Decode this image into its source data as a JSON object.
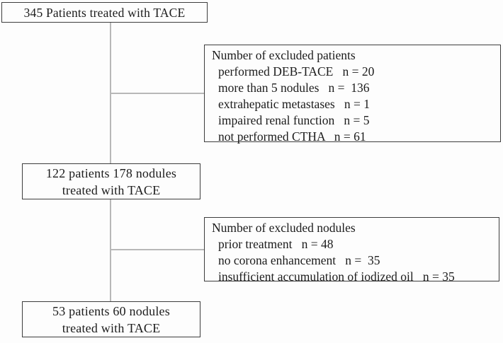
{
  "figure": {
    "type": "patient-flow-diagram",
    "colors": {
      "background": "#fdfdfd",
      "box_border": "#3d3d3d",
      "connector_line": "#b8b8b8",
      "text": "#1c1c1c"
    }
  },
  "boxes": {
    "total_patients": {
      "text": "345 Patients treated with TACE"
    },
    "intermediate": {
      "line1": "122 patients 178 nodules",
      "line2": "treated with TACE"
    },
    "final": {
      "line1": "53 patients 60 nodules",
      "line2": "treated with TACE"
    }
  },
  "excluded_patients": {
    "title": "Number of excluded patients",
    "items": [
      "performed DEB-TACE   n = 20",
      "more than 5 nodules   n =  136",
      "extrahepatic metastases   n = 1",
      "impaired renal function   n = 5",
      "not performed CTHA   n = 61"
    ]
  },
  "excluded_nodules": {
    "title": "Number of excluded nodules",
    "items": [
      "prior treatment   n = 48",
      "no corona enhancement   n =  35",
      "insufficient accumulation of iodized oil   n = 35"
    ]
  }
}
